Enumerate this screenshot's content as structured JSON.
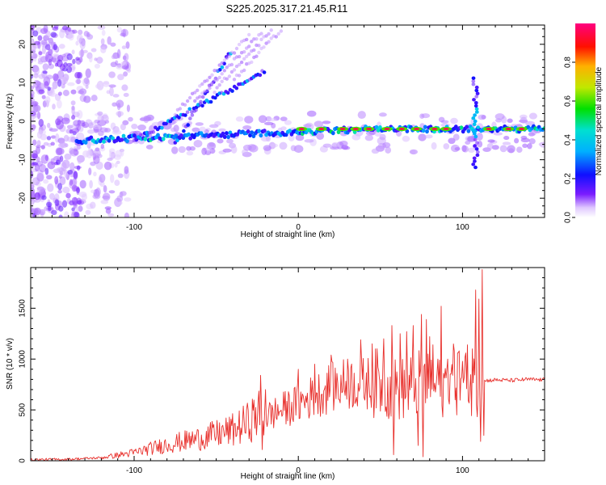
{
  "title": "S225.2025.317.21.45.R11",
  "chart_data": [
    {
      "type": "heatmap",
      "name": "spectrogram",
      "xlabel": "Height of straight line (km)",
      "ylabel": "Frequency (Hz)",
      "xlim": [
        -163,
        150
      ],
      "ylim": [
        -25,
        25
      ],
      "xticks": [
        -100,
        0,
        100
      ],
      "yticks": [
        -20,
        -10,
        0,
        10,
        20
      ],
      "colorbar": {
        "label": "Normalized spectral amplitude",
        "range": [
          0,
          1
        ],
        "ticks": [
          "0.0",
          "0.2",
          "0.4",
          "0.6",
          "0.8"
        ]
      },
      "features": [
        {
          "desc": "main echo band",
          "x": [
            -135,
            150
          ],
          "freq_start": -5,
          "freq_end": -2
        },
        {
          "desc": "rising trail 1",
          "x": [
            -75,
            -40
          ],
          "freq_start": -6,
          "freq_end": 19
        },
        {
          "desc": "rising trail 2",
          "x": [
            -100,
            -20
          ],
          "freq_start": -5,
          "freq_end": 13
        },
        {
          "desc": "high amplitude patches",
          "x": [
            0,
            140
          ],
          "freq": -2,
          "amplitude": 0.95
        }
      ]
    },
    {
      "type": "line",
      "name": "snr",
      "xlabel": "Height of straight line (km)",
      "ylabel": "SNR (10 * v/v)",
      "xlim": [
        -163,
        150
      ],
      "ylim": [
        0,
        1900
      ],
      "xticks": [
        -100,
        0,
        100
      ],
      "yticks": [
        0,
        500,
        1000,
        1500
      ],
      "color": "#e8302c",
      "x": [
        -163,
        -140,
        -120,
        -100,
        -80,
        -60,
        -40,
        -30,
        -25,
        -20,
        -10,
        0,
        10,
        20,
        30,
        40,
        50,
        55,
        60,
        65,
        70,
        75,
        80,
        85,
        90,
        95,
        100,
        103,
        104,
        105,
        108,
        110,
        111,
        112,
        113,
        115,
        120,
        130,
        140,
        150
      ],
      "values": [
        10,
        15,
        30,
        80,
        160,
        220,
        300,
        380,
        460,
        430,
        500,
        560,
        640,
        720,
        760,
        760,
        770,
        730,
        700,
        710,
        740,
        760,
        720,
        690,
        760,
        800,
        790,
        740,
        670,
        710,
        760,
        780,
        770,
        760,
        780,
        790,
        795,
        790,
        800,
        795
      ],
      "spikes": [
        {
          "x": -23,
          "y": 840
        },
        {
          "x": -22,
          "y": 110
        },
        {
          "x": -20,
          "y": 700
        },
        {
          "x": 0,
          "y": 900
        },
        {
          "x": 10,
          "y": 950
        },
        {
          "x": 20,
          "y": 1040
        },
        {
          "x": 30,
          "y": 1000
        },
        {
          "x": 38,
          "y": 1190
        },
        {
          "x": 45,
          "y": 1150
        },
        {
          "x": 52,
          "y": 1200
        },
        {
          "x": 57,
          "y": 1330
        },
        {
          "x": 58,
          "y": 60
        },
        {
          "x": 62,
          "y": 1250
        },
        {
          "x": 66,
          "y": 1270
        },
        {
          "x": 70,
          "y": 1330
        },
        {
          "x": 73,
          "y": 150
        },
        {
          "x": 75,
          "y": 1440
        },
        {
          "x": 76,
          "y": 40
        },
        {
          "x": 78,
          "y": 1390
        },
        {
          "x": 80,
          "y": 1220
        },
        {
          "x": 82,
          "y": 1140
        },
        {
          "x": 85,
          "y": 1000
        },
        {
          "x": 87,
          "y": 1520
        },
        {
          "x": 91,
          "y": 1000
        },
        {
          "x": 95,
          "y": 1080
        },
        {
          "x": 98,
          "y": 1080
        },
        {
          "x": 103,
          "y": 1140
        },
        {
          "x": 106,
          "y": 1100
        },
        {
          "x": 108,
          "y": 1680
        },
        {
          "x": 110,
          "y": 1590
        },
        {
          "x": 111,
          "y": 190
        },
        {
          "x": 112,
          "y": 1880
        },
        {
          "x": 113,
          "y": 250
        }
      ]
    }
  ]
}
